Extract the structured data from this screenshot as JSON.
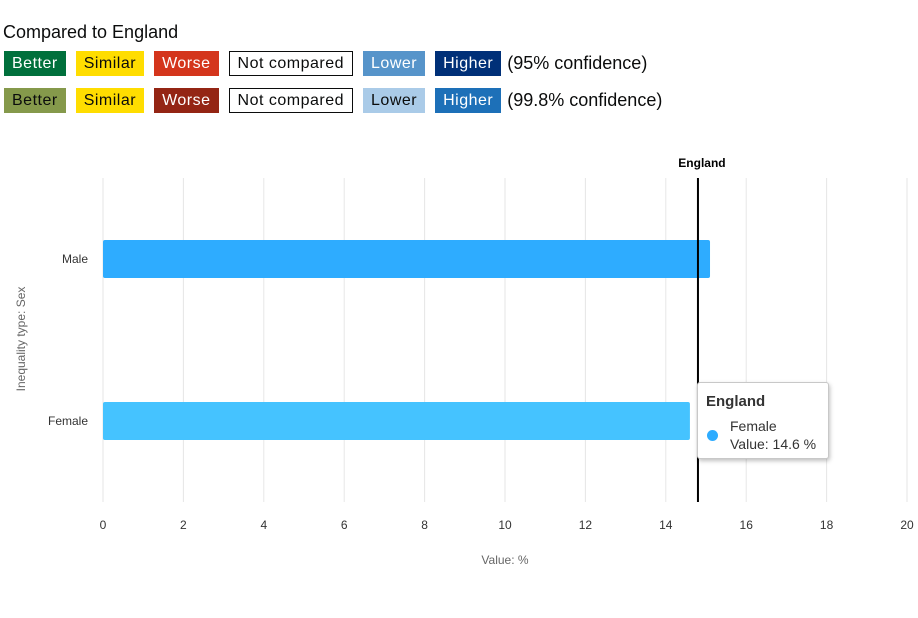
{
  "legend": {
    "title": "Compared to England",
    "rows": [
      {
        "suffix": "(95% confidence)",
        "chips": [
          {
            "label": "Better",
            "bg": "#00703c",
            "fg": "#ffffff",
            "outline": false
          },
          {
            "label": "Similar",
            "bg": "#ffdd00",
            "fg": "#0b0c0c",
            "outline": false
          },
          {
            "label": "Worse",
            "bg": "#d4351c",
            "fg": "#ffffff",
            "outline": false
          },
          {
            "label": "Not compared",
            "bg": "#ffffff",
            "fg": "#0b0c0c",
            "outline": true
          },
          {
            "label": "Lower",
            "bg": "#5694ca",
            "fg": "#ffffff",
            "outline": false
          },
          {
            "label": "Higher",
            "bg": "#003078",
            "fg": "#ffffff",
            "outline": false
          }
        ]
      },
      {
        "suffix": "(99.8% confidence)",
        "chips": [
          {
            "label": "Better",
            "bg": "#85994b",
            "fg": "#0b0c0c",
            "outline": false
          },
          {
            "label": "Similar",
            "bg": "#ffdd00",
            "fg": "#0b0c0c",
            "outline": false
          },
          {
            "label": "Worse",
            "bg": "#942514",
            "fg": "#ffffff",
            "outline": false
          },
          {
            "label": "Not compared",
            "bg": "#ffffff",
            "fg": "#0b0c0c",
            "outline": true
          },
          {
            "label": "Lower",
            "bg": "#aacbe8",
            "fg": "#0b0c0c",
            "outline": false
          },
          {
            "label": "Higher",
            "bg": "#1d70b8",
            "fg": "#ffffff",
            "outline": false
          }
        ]
      }
    ]
  },
  "chart_data": {
    "type": "bar",
    "orientation": "horizontal",
    "categories": [
      "Male",
      "Female"
    ],
    "series": [
      {
        "values": [
          15.1,
          14.6
        ],
        "colors": [
          "#2eacff",
          "#45c3ff"
        ]
      }
    ],
    "xlabel": "Value: %",
    "ylabel": "Inequality type: Sex",
    "xlim": [
      0,
      20
    ],
    "xticks": [
      0,
      2,
      4,
      6,
      8,
      10,
      12,
      14,
      16,
      18,
      20
    ],
    "grid": true,
    "reference_line": {
      "label": "England",
      "value": 14.8,
      "color": "#000000"
    }
  },
  "tooltip": {
    "title": "England",
    "line1": "Female",
    "line2": "Value: 14.6 %",
    "dot_color": "#2eacff"
  }
}
